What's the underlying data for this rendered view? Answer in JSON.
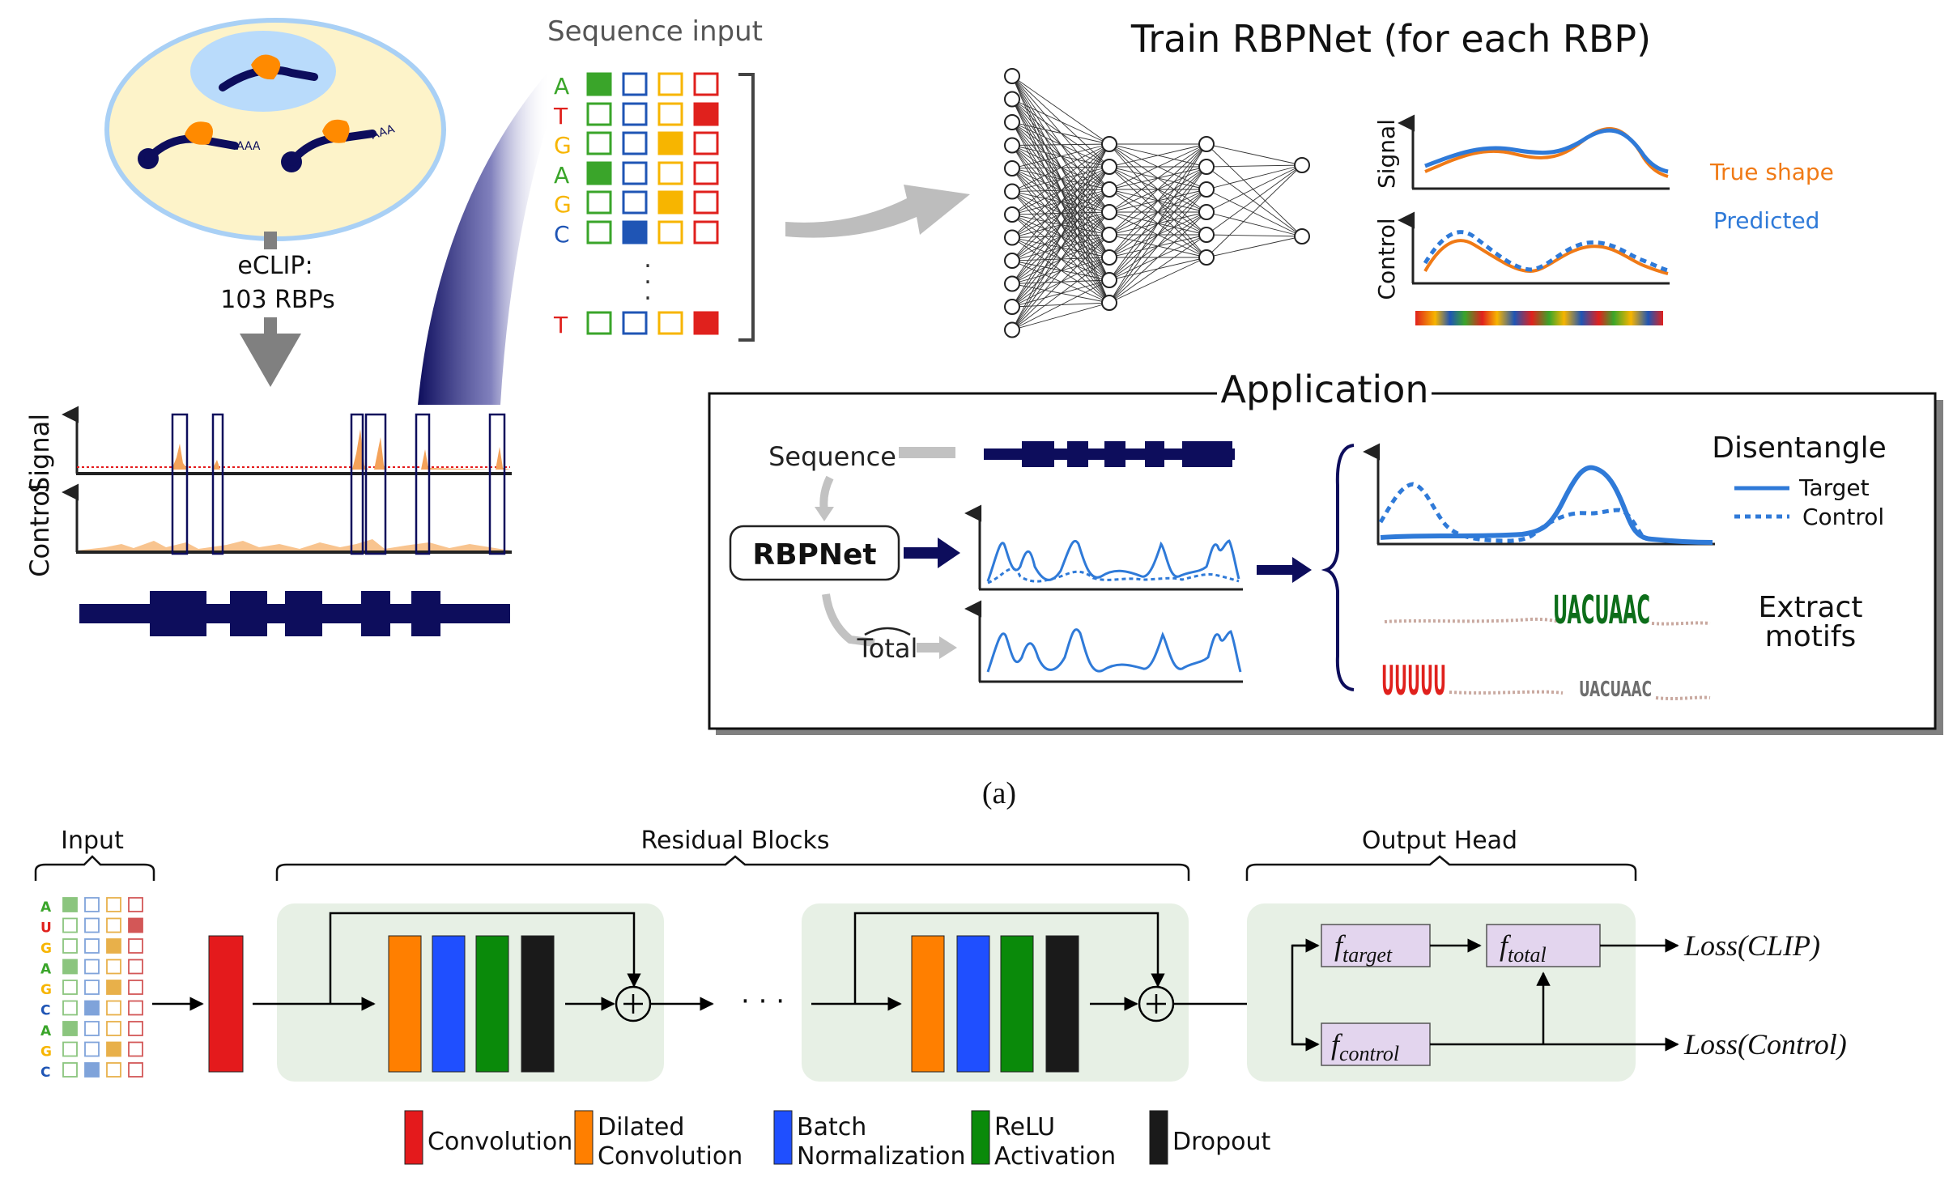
{
  "panel_a": {
    "eclip_label": "eCLIP:",
    "eclip_count": "103 RBPs",
    "polya_tail": "AAA",
    "axis_signal": "Signal",
    "axis_control": "Control",
    "sequence_input_title": "Sequence input",
    "bases": [
      "A",
      "T",
      "G",
      "A",
      "G",
      "C",
      "T"
    ],
    "vdots": ".",
    "train_title": "Train RBPNet (for each RBP)",
    "signal_axis": "Signal",
    "control_axis": "Control",
    "legend_true": "True shape",
    "legend_pred": "Predicted",
    "application": {
      "title": "Application",
      "sequence": "Sequence",
      "rbpnet": "RBPNet",
      "total": "Total",
      "disentangle": "Disentangle",
      "target": "Target",
      "control": "Control",
      "extract_1": "Extract",
      "extract_2": "motifs",
      "motif_1": "UACUAAC",
      "motif_2": "UUUUU",
      "motif_3": "UACUAAC"
    },
    "caption": "(a)"
  },
  "panel_b": {
    "input_label": "Input",
    "residual_label": "Residual Blocks",
    "output_label": "Output Head",
    "bases": [
      "A",
      "U",
      "G",
      "A",
      "G",
      "C",
      "A",
      "G",
      "C"
    ],
    "dots": "· · ·",
    "f_base": "f",
    "f_target_sub": "target",
    "f_total_sub": "total",
    "f_control_sub": "control",
    "loss_clip": "Loss(CLIP)",
    "loss_control": "Loss(Control)",
    "legend": [
      {
        "line1": "Convolution",
        "line2": "",
        "color": "#e41a1c"
      },
      {
        "line1": "Dilated",
        "line2": "Convolution",
        "color": "#ff7f00"
      },
      {
        "line1": "Batch",
        "line2": "Normalization",
        "color": "#1f4fff"
      },
      {
        "line1": "ReLU",
        "line2": "Activation",
        "color": "#0a8a0a"
      },
      {
        "line1": "Dropout",
        "line2": "",
        "color": "#1a1a1a"
      }
    ]
  },
  "colors": {
    "navy": "#0d0d5c",
    "orange": "#ff8a00",
    "blue_line": "#2f7ad8",
    "true_line": "#f07a16",
    "base_A": "#3aa52a",
    "base_T": "#e0211d",
    "base_G": "#f7b500",
    "base_C": "#1f55b5"
  }
}
